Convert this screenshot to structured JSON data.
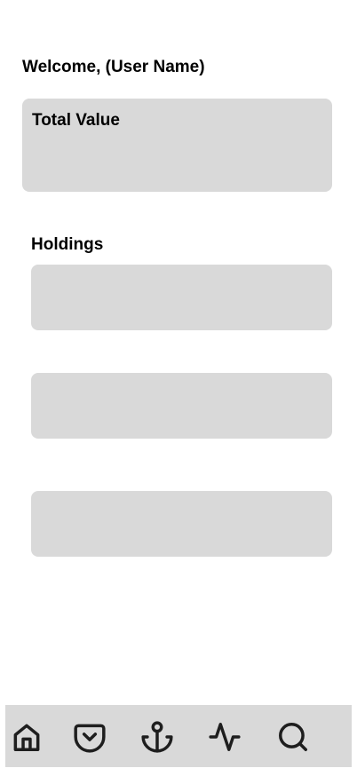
{
  "header": {
    "welcome_text": "Welcome, (User Name)"
  },
  "summary": {
    "total_value_label": "Total Value"
  },
  "holdings": {
    "title": "Holdings",
    "items": [
      {
        "id": 1
      },
      {
        "id": 2
      },
      {
        "id": 3
      }
    ]
  },
  "bottom_nav": {
    "items": [
      {
        "icon": "home-icon"
      },
      {
        "icon": "pocket-icon"
      },
      {
        "icon": "anchor-icon"
      },
      {
        "icon": "activity-icon"
      },
      {
        "icon": "search-icon"
      }
    ]
  },
  "colors": {
    "card_background": "#d9d9d9",
    "nav_background": "#d9d9d9",
    "icon_stroke": "#1e1e1e",
    "text": "#000000"
  }
}
